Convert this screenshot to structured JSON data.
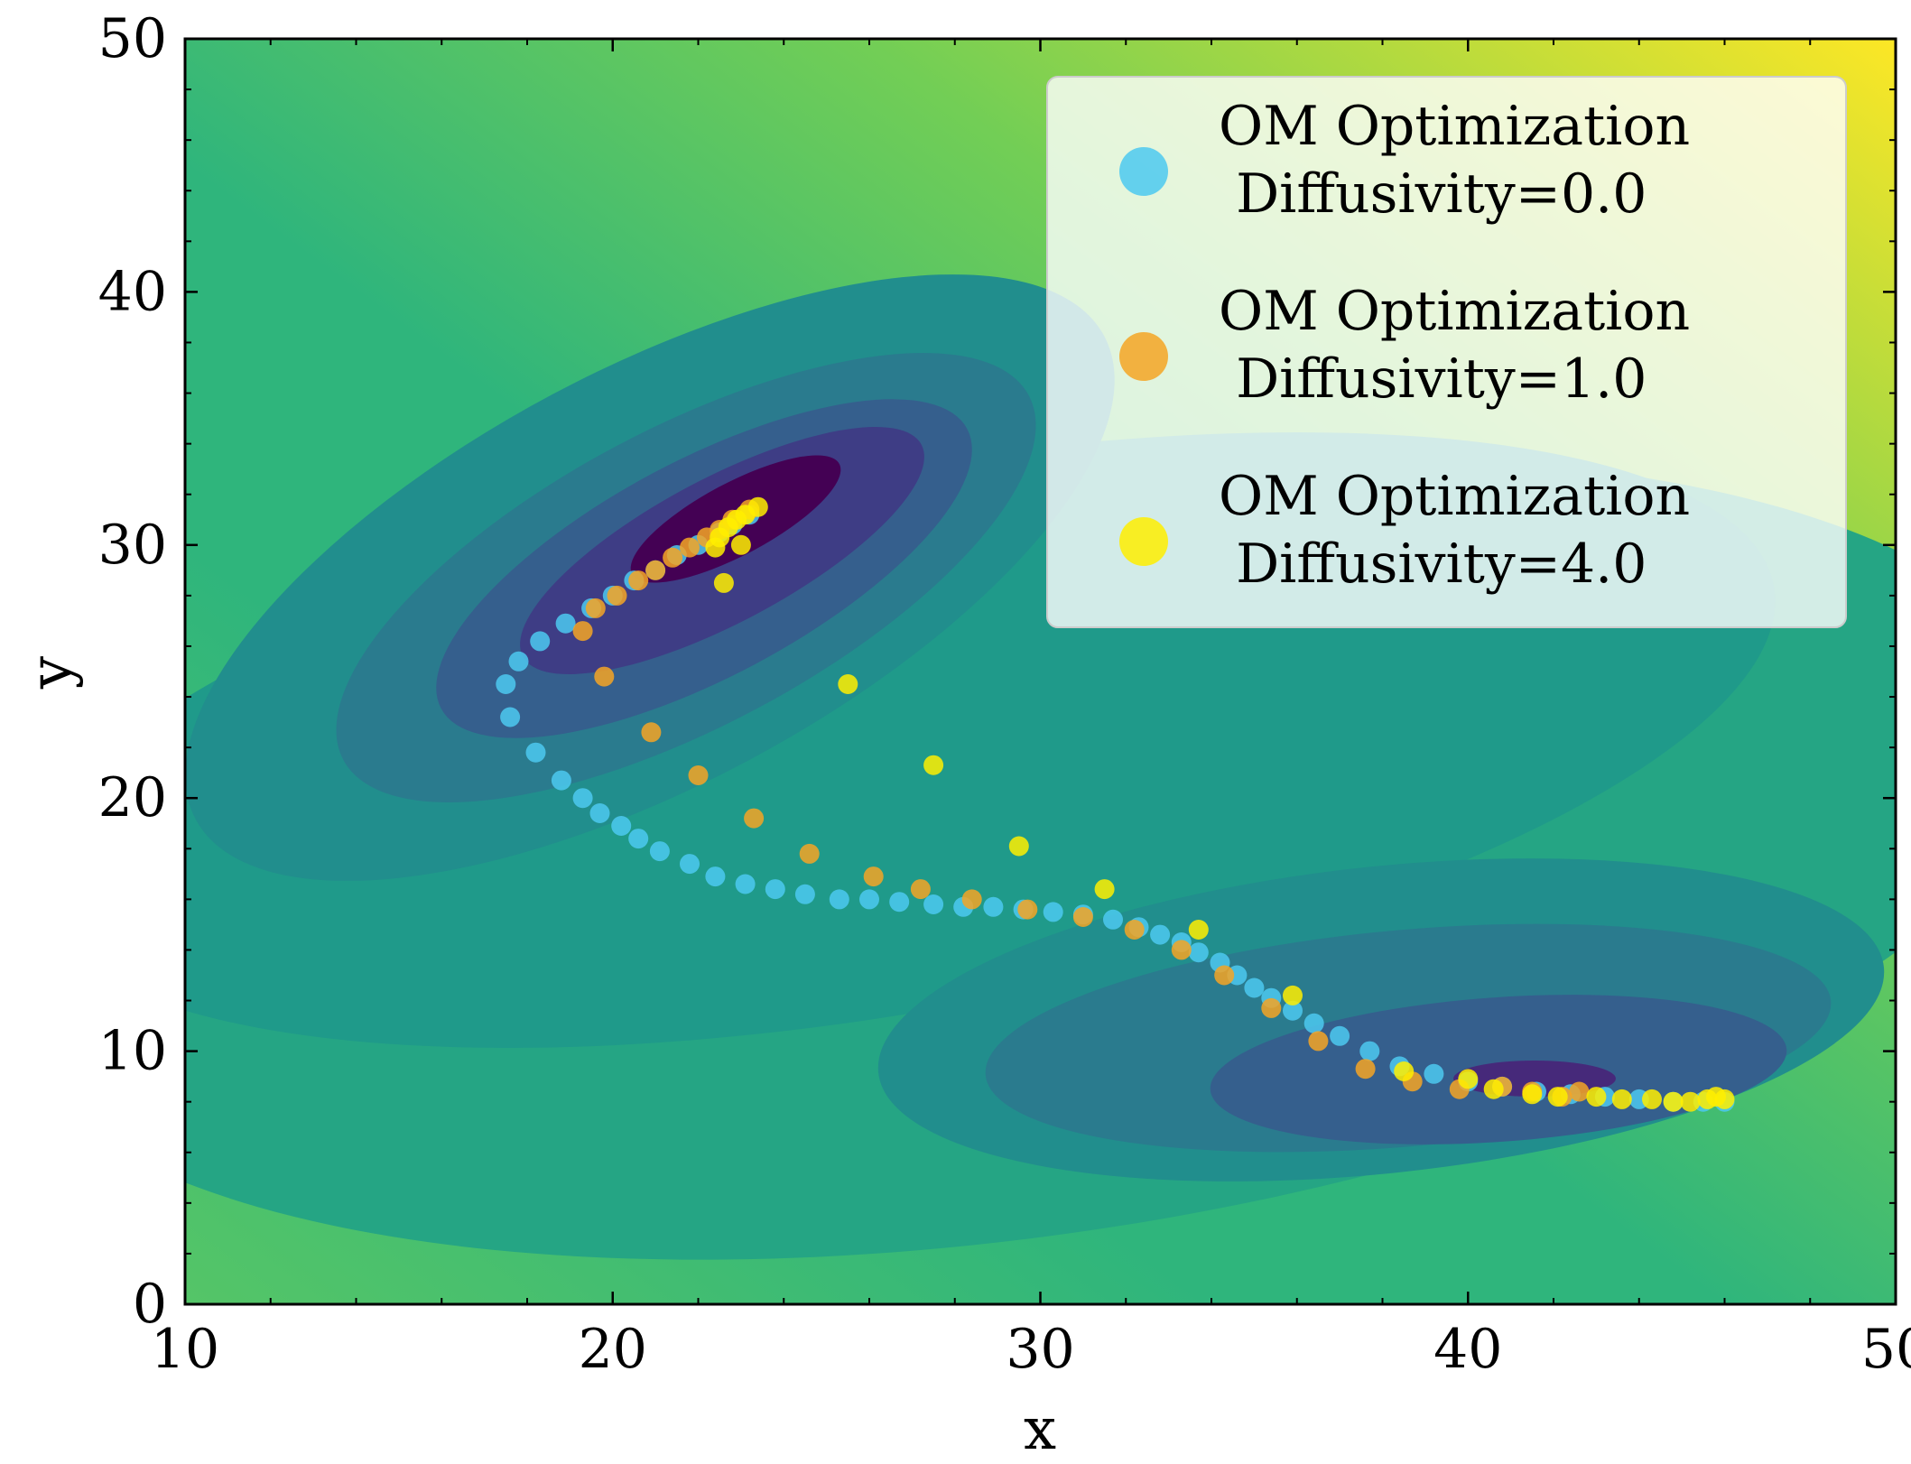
{
  "chart_data": {
    "type": "scatter",
    "title": "",
    "xlabel": "x",
    "ylabel": "y",
    "xlim": [
      10,
      50
    ],
    "ylim": [
      0,
      50
    ],
    "xticks": [
      10,
      20,
      30,
      40,
      50
    ],
    "yticks": [
      0,
      10,
      20,
      30,
      40,
      50
    ],
    "background": "filled contour of a potential energy surface (viridis colormap) with deep minima near (23, 31) and (42, 8)",
    "legend_position": "top-right",
    "series": [
      {
        "name": "OM Optimization\n Diffusivity=0.0",
        "label_line1": "OM Optimization",
        "label_line2": " Diffusivity=0.0",
        "color": "#4cc9f0",
        "points": [
          [
            23.2,
            31.2
          ],
          [
            22.8,
            30.8
          ],
          [
            22.5,
            30.5
          ],
          [
            22.0,
            30.0
          ],
          [
            21.5,
            29.6
          ],
          [
            21.0,
            29.0
          ],
          [
            20.5,
            28.6
          ],
          [
            20.0,
            28.0
          ],
          [
            19.5,
            27.5
          ],
          [
            18.9,
            26.9
          ],
          [
            18.3,
            26.2
          ],
          [
            17.8,
            25.4
          ],
          [
            17.5,
            24.5
          ],
          [
            17.6,
            23.2
          ],
          [
            18.2,
            21.8
          ],
          [
            18.8,
            20.7
          ],
          [
            19.3,
            20.0
          ],
          [
            19.7,
            19.4
          ],
          [
            20.2,
            18.9
          ],
          [
            20.6,
            18.4
          ],
          [
            21.1,
            17.9
          ],
          [
            21.8,
            17.4
          ],
          [
            22.4,
            16.9
          ],
          [
            23.1,
            16.6
          ],
          [
            23.8,
            16.4
          ],
          [
            24.5,
            16.2
          ],
          [
            25.3,
            16.0
          ],
          [
            26.0,
            16.0
          ],
          [
            26.7,
            15.9
          ],
          [
            27.5,
            15.8
          ],
          [
            28.2,
            15.7
          ],
          [
            28.9,
            15.7
          ],
          [
            29.6,
            15.6
          ],
          [
            30.3,
            15.5
          ],
          [
            31.0,
            15.4
          ],
          [
            31.7,
            15.2
          ],
          [
            32.3,
            14.9
          ],
          [
            32.8,
            14.6
          ],
          [
            33.3,
            14.3
          ],
          [
            33.7,
            13.9
          ],
          [
            34.2,
            13.5
          ],
          [
            34.6,
            13.0
          ],
          [
            35.0,
            12.5
          ],
          [
            35.4,
            12.1
          ],
          [
            35.9,
            11.6
          ],
          [
            36.4,
            11.1
          ],
          [
            37.0,
            10.6
          ],
          [
            37.7,
            10.0
          ],
          [
            38.4,
            9.4
          ],
          [
            39.2,
            9.1
          ],
          [
            40.0,
            8.8
          ],
          [
            40.8,
            8.6
          ],
          [
            41.6,
            8.4
          ],
          [
            42.4,
            8.3
          ],
          [
            43.2,
            8.2
          ],
          [
            44.0,
            8.1
          ],
          [
            44.8,
            8.0
          ],
          [
            45.5,
            8.0
          ],
          [
            46.0,
            8.0
          ]
        ]
      },
      {
        "name": "OM Optimization\n Diffusivity=1.0",
        "label_line1": "OM Optimization",
        "label_line2": " Diffusivity=1.0",
        "color": "#f5a524",
        "points": [
          [
            23.2,
            31.4
          ],
          [
            22.8,
            31.0
          ],
          [
            22.5,
            30.6
          ],
          [
            22.2,
            30.3
          ],
          [
            21.8,
            29.9
          ],
          [
            21.4,
            29.5
          ],
          [
            21.0,
            29.0
          ],
          [
            20.6,
            28.6
          ],
          [
            20.1,
            28.0
          ],
          [
            19.6,
            27.5
          ],
          [
            19.3,
            26.6
          ],
          [
            19.8,
            24.8
          ],
          [
            20.9,
            22.6
          ],
          [
            22.0,
            20.9
          ],
          [
            23.3,
            19.2
          ],
          [
            24.6,
            17.8
          ],
          [
            26.1,
            16.9
          ],
          [
            27.2,
            16.4
          ],
          [
            28.4,
            16.0
          ],
          [
            29.7,
            15.6
          ],
          [
            31.0,
            15.3
          ],
          [
            32.2,
            14.8
          ],
          [
            33.3,
            14.0
          ],
          [
            34.3,
            13.0
          ],
          [
            35.4,
            11.7
          ],
          [
            36.5,
            10.4
          ],
          [
            37.6,
            9.3
          ],
          [
            38.7,
            8.8
          ],
          [
            39.8,
            8.5
          ],
          [
            40.8,
            8.6
          ],
          [
            41.5,
            8.4
          ],
          [
            42.2,
            8.2
          ],
          [
            42.6,
            8.4
          ]
        ]
      },
      {
        "name": "OM Optimization\n Diffusivity=4.0",
        "label_line1": "OM Optimization",
        "label_line2": " Diffusivity=4.0",
        "color": "#ffee00",
        "points": [
          [
            23.4,
            31.5
          ],
          [
            23.1,
            31.2
          ],
          [
            22.9,
            31.0
          ],
          [
            22.7,
            30.7
          ],
          [
            22.5,
            30.3
          ],
          [
            22.4,
            29.9
          ],
          [
            23.0,
            30.0
          ],
          [
            22.6,
            28.5
          ],
          [
            25.5,
            24.5
          ],
          [
            27.5,
            21.3
          ],
          [
            29.5,
            18.1
          ],
          [
            31.5,
            16.4
          ],
          [
            33.7,
            14.8
          ],
          [
            35.9,
            12.2
          ],
          [
            38.5,
            9.2
          ],
          [
            40.0,
            8.9
          ],
          [
            40.6,
            8.5
          ],
          [
            41.5,
            8.3
          ],
          [
            42.1,
            8.2
          ],
          [
            43.0,
            8.2
          ],
          [
            43.6,
            8.1
          ],
          [
            44.3,
            8.1
          ],
          [
            44.8,
            8.0
          ],
          [
            45.2,
            8.0
          ],
          [
            45.6,
            8.1
          ],
          [
            45.8,
            8.2
          ],
          [
            46.0,
            8.1
          ]
        ]
      }
    ]
  }
}
